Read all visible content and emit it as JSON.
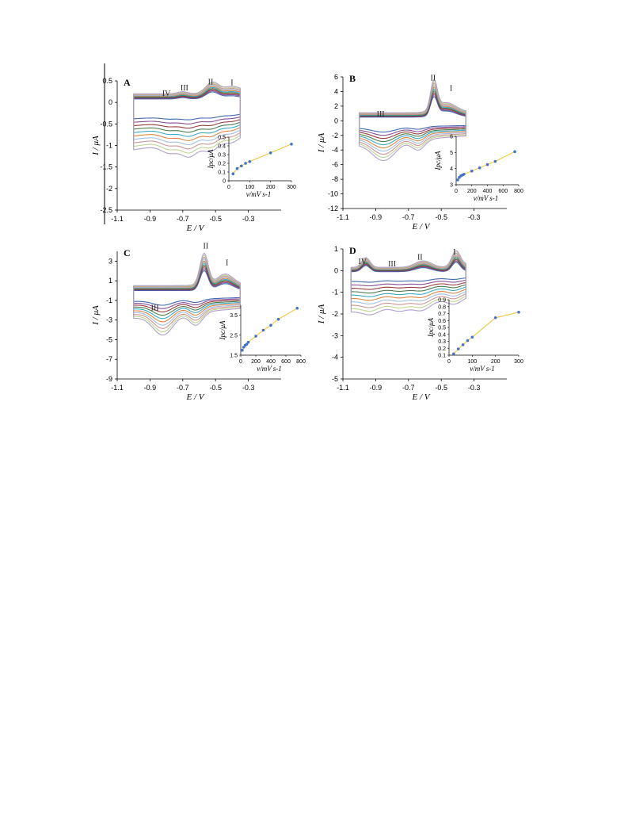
{
  "chart_data": [
    {
      "type": "line",
      "panel_label": "A",
      "xlabel": "E / V",
      "ylabel": "I / μA",
      "xlim": [
        -1.1,
        -0.1
      ],
      "ylim": [
        -2.5,
        0.5
      ],
      "x_ticks": [
        "-1.1",
        "-0.9",
        "-0.7",
        "-0.5",
        "-0.3"
      ],
      "y_ticks": [
        "0.5",
        "0",
        "-0.5",
        "-1",
        "-1.5",
        "-2",
        "-2.5"
      ],
      "peak_labels": [
        "IV",
        "III",
        "II",
        "I"
      ],
      "peak_positions": [
        [
          -0.8,
          0.15
        ],
        [
          -0.69,
          0.28
        ],
        [
          -0.53,
          0.42
        ],
        [
          -0.4,
          0.4
        ]
      ],
      "cv": {
        "e_start": -1.0,
        "e_end": -0.35,
        "n_curves": 10,
        "fwd_base": -0.38,
        "fwd_base_max": -1.1,
        "rev_base": 0.08,
        "rev_base_max": 0.2,
        "fwd_peaks": [
          [
            -0.78,
            0.05,
            0.2
          ],
          [
            -0.66,
            0.05,
            0.35
          ],
          [
            -0.53,
            0.05,
            0.3
          ],
          [
            -0.4,
            0.05,
            0.18
          ]
        ],
        "rev_peaks": [
          [
            -0.7,
            0.03,
            0.05
          ],
          [
            -0.52,
            0.04,
            0.25
          ],
          [
            -0.4,
            0.04,
            0.08
          ]
        ],
        "rev_step": [
          -0.48,
          0.035,
          0.2,
          0.5
        ]
      },
      "inset": {
        "xlabel": "v/mV s-1",
        "ylabel": "Ipc/μA",
        "xlim": [
          0,
          300
        ],
        "ylim": [
          0,
          0.5
        ],
        "x_ticks": [
          "0",
          "100",
          "200",
          "300"
        ],
        "y_ticks": [
          "0",
          "0.1",
          "0.2",
          "0.3",
          "0.4",
          "0.5"
        ],
        "x": [
          20,
          40,
          60,
          80,
          100,
          200,
          300
        ],
        "y": [
          0.08,
          0.14,
          0.17,
          0.2,
          0.22,
          0.32,
          0.42
        ]
      }
    },
    {
      "type": "line",
      "panel_label": "B",
      "xlabel": "E / V",
      "ylabel": "I / μA",
      "xlim": [
        -1.1,
        -0.1
      ],
      "ylim": [
        -12,
        6
      ],
      "x_ticks": [
        "-1.1",
        "-0.9",
        "-0.7",
        "-0.5",
        "-0.3"
      ],
      "y_ticks": [
        "6",
        "4",
        "2",
        "0",
        "-2",
        "-4",
        "-6",
        "-8",
        "-10",
        "-12"
      ],
      "peak_labels": [
        "III",
        "II",
        "I"
      ],
      "peak_positions": [
        [
          -0.87,
          0.6
        ],
        [
          -0.55,
          5.5
        ],
        [
          -0.44,
          4.1
        ]
      ],
      "cv": {
        "e_start": -1.0,
        "e_end": -0.35,
        "n_curves": 10,
        "fwd_base": -1.0,
        "fwd_base_max": -3.2,
        "rev_base": 0.5,
        "rev_base_max": 1.1,
        "fwd_peaks": [
          [
            -0.85,
            0.07,
            2.5
          ],
          [
            -0.64,
            0.04,
            1.4
          ]
        ],
        "rev_peaks": [
          [
            -0.545,
            0.02,
            3.9
          ],
          [
            -0.47,
            0.06,
            1.3
          ]
        ],
        "rev_step": [
          -0.6,
          0.04,
          0.4,
          0.2
        ]
      },
      "inset": {
        "xlabel": "v/mV s-1",
        "ylabel": "Ipc/μA",
        "xlim": [
          0,
          800
        ],
        "ylim": [
          3,
          6
        ],
        "x_ticks": [
          "0",
          "200",
          "400",
          "600",
          "800"
        ],
        "y_ticks": [
          "3",
          "4",
          "5",
          "6"
        ],
        "x": [
          20,
          40,
          60,
          80,
          100,
          200,
          300,
          400,
          500,
          750
        ],
        "y": [
          3.3,
          3.45,
          3.55,
          3.6,
          3.65,
          3.85,
          4.05,
          4.25,
          4.45,
          5.05
        ]
      }
    },
    {
      "type": "line",
      "panel_label": "C",
      "xlabel": "E / V",
      "ylabel": "I / μA",
      "xlim": [
        -1.1,
        -0.1
      ],
      "ylim": [
        -9,
        4
      ],
      "x_ticks": [
        "-1.1",
        "-0.9",
        "-0.7",
        "-0.5",
        "-0.3"
      ],
      "y_ticks": [
        "3",
        "1",
        "-1",
        "-3",
        "-5",
        "-7",
        "-9"
      ],
      "peak_labels": [
        "III",
        "II",
        "I"
      ],
      "peak_positions": [
        [
          -0.87,
          -2.0
        ],
        [
          -0.56,
          4.3
        ],
        [
          -0.43,
          2.6
        ]
      ],
      "cv": {
        "e_start": -1.0,
        "e_end": -0.35,
        "n_curves": 10,
        "fwd_base": -1.1,
        "fwd_base_max": -2.8,
        "rev_base": 0.0,
        "rev_base_max": 0.5,
        "fwd_peaks": [
          [
            -0.82,
            0.06,
            2.0
          ],
          [
            -0.62,
            0.04,
            1.3
          ]
        ],
        "rev_peaks": [
          [
            -0.57,
            0.025,
            3.2
          ],
          [
            -0.44,
            0.05,
            1.1
          ]
        ],
        "rev_step": [
          -0.65,
          0.05,
          0.4,
          0.2
        ]
      },
      "inset": {
        "xlabel": "v/mV s-1",
        "ylabel": "Ipc/μA",
        "xlim": [
          0,
          800
        ],
        "ylim": [
          1.5,
          4.0
        ],
        "x_ticks": [
          "0",
          "200",
          "400",
          "600",
          "800"
        ],
        "y_ticks": [
          "1.5",
          "2.5",
          "3.5"
        ],
        "x": [
          20,
          40,
          60,
          80,
          100,
          200,
          300,
          400,
          500,
          750
        ],
        "y": [
          1.75,
          1.9,
          2.0,
          2.05,
          2.15,
          2.45,
          2.75,
          3.0,
          3.3,
          3.85
        ]
      }
    },
    {
      "type": "line",
      "panel_label": "D",
      "xlabel": "E / V",
      "ylabel": "I / μA",
      "xlim": [
        -1.1,
        -0.1
      ],
      "ylim": [
        -5,
        1
      ],
      "x_ticks": [
        "-1.1",
        "-0.9",
        "-0.7",
        "-0.5",
        "-0.3"
      ],
      "y_ticks": [
        "1",
        "0",
        "-1",
        "-2",
        "-3",
        "-4",
        "-5"
      ],
      "peak_labels": [
        "IV",
        "III",
        "II",
        "I"
      ],
      "peak_positions": [
        [
          -0.98,
          0.3
        ],
        [
          -0.8,
          0.2
        ],
        [
          -0.63,
          0.5
        ],
        [
          -0.42,
          0.75
        ]
      ],
      "cv": {
        "e_start": -1.05,
        "e_end": -0.35,
        "n_curves": 10,
        "fwd_base": -0.5,
        "fwd_base_max": -1.9,
        "rev_base": -0.05,
        "rev_base_max": 0.15,
        "fwd_peaks": [
          [
            -0.93,
            0.05,
            0.25
          ],
          [
            -0.75,
            0.05,
            0.25
          ],
          [
            -0.62,
            0.05,
            0.35
          ],
          [
            -0.42,
            0.04,
            0.25
          ]
        ],
        "rev_peaks": [
          [
            -0.96,
            0.025,
            0.45
          ],
          [
            -0.61,
            0.05,
            0.3
          ],
          [
            -0.41,
            0.025,
            0.65
          ]
        ],
        "rev_step": [
          -0.44,
          0.02,
          0.3,
          0.5
        ]
      },
      "inset": {
        "xlabel": "v/mV s-1",
        "ylabel": "Ipc/μA",
        "xlim": [
          0,
          300
        ],
        "ylim": [
          0.1,
          0.9
        ],
        "x_ticks": [
          "0",
          "100",
          "200",
          "300"
        ],
        "y_ticks": [
          "0.1",
          "0.2",
          "0.3",
          "0.4",
          "0.5",
          "0.6",
          "0.7",
          "0.8",
          "0.9"
        ],
        "x": [
          20,
          40,
          60,
          80,
          100,
          200,
          300
        ],
        "y": [
          0.12,
          0.19,
          0.25,
          0.31,
          0.36,
          0.64,
          0.72
        ]
      }
    }
  ],
  "colors": {
    "curves": [
      "#2e5aa8",
      "#7a3b8c",
      "#8c2a2a",
      "#3b6e3b",
      "#26a0c4",
      "#d97a30",
      "#9ab8e0",
      "#c98a8a",
      "#b9cf86",
      "#a896c8"
    ],
    "fit_line": "#f2c641",
    "inset_points": "#4472c4"
  }
}
